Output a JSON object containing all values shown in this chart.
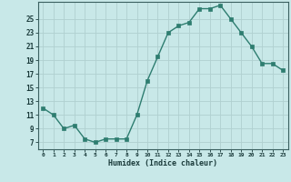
{
  "x": [
    0,
    1,
    2,
    3,
    4,
    5,
    6,
    7,
    8,
    9,
    10,
    11,
    12,
    13,
    14,
    15,
    16,
    17,
    18,
    19,
    20,
    21,
    22,
    23
  ],
  "y": [
    12.0,
    11.0,
    9.0,
    9.5,
    7.5,
    7.0,
    7.5,
    7.5,
    7.5,
    11.0,
    16.0,
    19.5,
    23.0,
    24.0,
    24.5,
    26.5,
    26.5,
    27.0,
    25.0,
    23.0,
    21.0,
    18.5,
    18.5,
    17.5
  ],
  "line_color": "#2e7d70",
  "marker_color": "#2e7d70",
  "bg_color": "#c8e8e8",
  "xlabel": "Humidex (Indice chaleur)",
  "xlim": [
    -0.5,
    23.5
  ],
  "ylim": [
    6,
    27.5
  ],
  "yticks": [
    7,
    9,
    11,
    13,
    15,
    17,
    19,
    21,
    23,
    25
  ],
  "xticks": [
    0,
    1,
    2,
    3,
    4,
    5,
    6,
    7,
    8,
    9,
    10,
    11,
    12,
    13,
    14,
    15,
    16,
    17,
    18,
    19,
    20,
    21,
    22,
    23
  ],
  "grid_color": "#b0d0d0"
}
